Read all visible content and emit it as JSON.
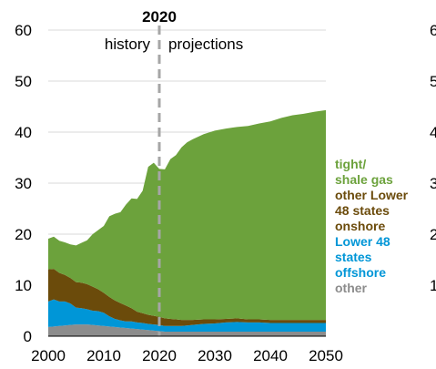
{
  "chart_data": {
    "type": "area",
    "stacked": true,
    "x": [
      2000,
      2001,
      2002,
      2003,
      2004,
      2005,
      2006,
      2007,
      2008,
      2009,
      2010,
      2011,
      2012,
      2013,
      2014,
      2015,
      2016,
      2017,
      2018,
      2019,
      2020,
      2021,
      2022,
      2023,
      2024,
      2025,
      2026,
      2028,
      2030,
      2032,
      2034,
      2036,
      2038,
      2040,
      2042,
      2044,
      2046,
      2048,
      2050
    ],
    "series": [
      {
        "name": "other",
        "color": "#8c8c8c",
        "values": [
          1.8,
          1.9,
          2.0,
          2.1,
          2.2,
          2.3,
          2.3,
          2.3,
          2.2,
          2.1,
          2.0,
          1.9,
          1.8,
          1.7,
          1.6,
          1.5,
          1.4,
          1.3,
          1.2,
          1.1,
          1.0,
          0.9,
          0.9,
          0.9,
          0.9,
          0.9,
          0.9,
          0.9,
          0.9,
          0.9,
          0.9,
          0.9,
          0.9,
          0.9,
          0.9,
          0.9,
          0.9,
          0.9,
          0.9
        ]
      },
      {
        "name": "Lower 48 states offshore",
        "color": "#0096d7",
        "values": [
          5.0,
          5.3,
          4.8,
          4.7,
          4.2,
          3.3,
          3.2,
          3.0,
          2.8,
          2.8,
          2.6,
          2.0,
          1.6,
          1.4,
          1.3,
          1.4,
          1.3,
          1.3,
          1.2,
          1.2,
          1.2,
          1.1,
          1.1,
          1.1,
          1.1,
          1.2,
          1.3,
          1.5,
          1.6,
          1.8,
          1.9,
          1.8,
          1.8,
          1.7,
          1.7,
          1.7,
          1.7,
          1.7,
          1.7
        ]
      },
      {
        "name": "other Lower 48 states onshore",
        "color": "#6b4b0b",
        "values": [
          6.3,
          6.0,
          5.6,
          5.2,
          5.0,
          5.0,
          5.0,
          4.9,
          4.7,
          4.3,
          3.9,
          3.8,
          3.6,
          3.4,
          3.1,
          2.6,
          2.1,
          1.9,
          1.8,
          1.7,
          1.6,
          1.5,
          1.4,
          1.3,
          1.2,
          1.1,
          1.0,
          0.9,
          0.8,
          0.7,
          0.7,
          0.6,
          0.6,
          0.6,
          0.6,
          0.6,
          0.6,
          0.6,
          0.6
        ]
      },
      {
        "name": "tight/ shale gas",
        "color": "#6ca23c",
        "values": [
          6.0,
          6.3,
          6.3,
          6.4,
          6.6,
          7.2,
          7.8,
          8.6,
          10.3,
          11.6,
          13.1,
          15.8,
          17.0,
          17.8,
          19.8,
          21.5,
          22.1,
          24.0,
          29.0,
          30.0,
          29.0,
          29.2,
          31.3,
          32.2,
          33.8,
          34.8,
          35.4,
          36.3,
          37.0,
          37.3,
          37.5,
          37.9,
          38.4,
          38.9,
          39.6,
          40.1,
          40.4,
          40.8,
          41.1
        ]
      }
    ],
    "legend_order": [
      "tight/ shale gas",
      "other Lower 48 states onshore",
      "Lower 48 states offshore",
      "other"
    ],
    "legend_labels": [
      {
        "lines": [
          "tight/",
          "shale gas"
        ],
        "color": "#6ca23c"
      },
      {
        "lines": [
          "other Lower",
          "48 states",
          "onshore"
        ],
        "color": "#6b4b0b"
      },
      {
        "lines": [
          "Lower 48",
          "states",
          "offshore"
        ],
        "color": "#0096d7"
      },
      {
        "lines": [
          "other"
        ],
        "color": "#8c8c8c"
      }
    ],
    "xlim": [
      2000,
      2050
    ],
    "ylim": [
      0,
      60
    ],
    "x_ticks": [
      "2000",
      "2010",
      "2020",
      "2030",
      "2040",
      "2050"
    ],
    "y_ticks": [
      "0",
      "10",
      "20",
      "30",
      "40",
      "50",
      "60"
    ],
    "right_axis_ticks": [
      "6",
      "5",
      "4",
      "3",
      "2",
      "1"
    ],
    "grid": "horizontal",
    "divider": {
      "year": 2020,
      "label": "2020",
      "left_label": "history",
      "right_label": "projections",
      "color": "#a6a6a6"
    },
    "legend_placement": "right"
  }
}
